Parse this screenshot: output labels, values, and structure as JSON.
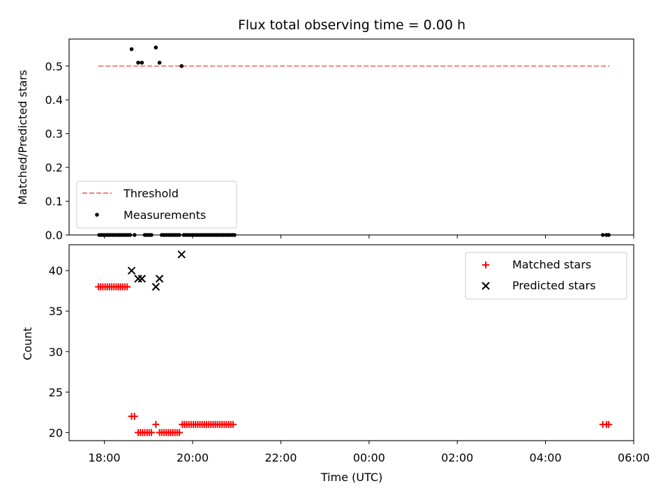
{
  "chart_data": [
    {
      "type": "scatter",
      "title": "Flux total observing time = 0.00 h",
      "xlabel": "",
      "ylabel": "Matched/Predicted stars",
      "xlim": [
        "17:12",
        "06:00"
      ],
      "ylim": [
        0,
        0.58
      ],
      "yticks": [
        0.0,
        0.1,
        0.2,
        0.3,
        0.4,
        0.5
      ],
      "ytick_labels": [
        "0.0",
        "0.1",
        "0.2",
        "0.3",
        "0.4",
        "0.5"
      ],
      "threshold": {
        "name": "Threshold",
        "value": 0.5,
        "x_start": "17:52",
        "x_end": "05:27",
        "color": "#f08080"
      },
      "legend_position": "lower-left",
      "series": [
        {
          "name": "Measurements",
          "color": "#000000",
          "points": [
            [
              "17:53",
              0
            ],
            [
              "17:56",
              0
            ],
            [
              "17:59",
              0
            ],
            [
              "18:02",
              0
            ],
            [
              "18:05",
              0
            ],
            [
              "18:08",
              0
            ],
            [
              "18:11",
              0
            ],
            [
              "18:14",
              0
            ],
            [
              "18:17",
              0
            ],
            [
              "18:20",
              0
            ],
            [
              "18:23",
              0
            ],
            [
              "18:26",
              0
            ],
            [
              "18:29",
              0
            ],
            [
              "18:32",
              0
            ],
            [
              "18:35",
              0
            ],
            [
              "18:37",
              0.55
            ],
            [
              "18:41",
              0
            ],
            [
              "18:46",
              0.51
            ],
            [
              "18:51",
              0.51
            ],
            [
              "18:55",
              0
            ],
            [
              "18:58",
              0
            ],
            [
              "19:01",
              0
            ],
            [
              "19:04",
              0
            ],
            [
              "19:10",
              0.555
            ],
            [
              "19:15",
              0.51
            ],
            [
              "19:18",
              0
            ],
            [
              "19:21",
              0
            ],
            [
              "19:24",
              0
            ],
            [
              "19:27",
              0
            ],
            [
              "19:30",
              0
            ],
            [
              "19:33",
              0
            ],
            [
              "19:36",
              0
            ],
            [
              "19:39",
              0
            ],
            [
              "19:42",
              0
            ],
            [
              "19:45",
              0.5
            ],
            [
              "19:48",
              0
            ],
            [
              "19:51",
              0
            ],
            [
              "19:54",
              0
            ],
            [
              "19:57",
              0
            ],
            [
              "20:00",
              0
            ],
            [
              "20:03",
              0
            ],
            [
              "20:06",
              0
            ],
            [
              "20:09",
              0
            ],
            [
              "20:12",
              0
            ],
            [
              "20:15",
              0
            ],
            [
              "20:18",
              0
            ],
            [
              "20:21",
              0
            ],
            [
              "20:24",
              0
            ],
            [
              "20:27",
              0
            ],
            [
              "20:30",
              0
            ],
            [
              "20:33",
              0
            ],
            [
              "20:36",
              0
            ],
            [
              "20:39",
              0
            ],
            [
              "20:42",
              0
            ],
            [
              "20:45",
              0
            ],
            [
              "20:48",
              0
            ],
            [
              "20:51",
              0
            ],
            [
              "20:54",
              0
            ],
            [
              "20:57",
              0
            ],
            [
              "05:18",
              0
            ],
            [
              "05:23",
              0
            ],
            [
              "05:26",
              0
            ]
          ]
        }
      ]
    },
    {
      "type": "scatter",
      "title": "",
      "xlabel": "Time (UTC)",
      "ylabel": "Count",
      "xlim": [
        "17:12",
        "06:00"
      ],
      "ylim": [
        19,
        43.2
      ],
      "yticks": [
        20,
        25,
        30,
        35,
        40
      ],
      "ytick_labels": [
        "20",
        "25",
        "30",
        "35",
        "40"
      ],
      "xticks": [
        "18:00",
        "20:00",
        "22:00",
        "00:00",
        "02:00",
        "04:00",
        "06:00"
      ],
      "xtick_labels": [
        "18:00",
        "20:00",
        "22:00",
        "00:00",
        "02:00",
        "04:00",
        "06:00"
      ],
      "legend_position": "upper-right",
      "series": [
        {
          "name": "Matched stars",
          "color": "#ff0000",
          "marker": "plus",
          "points": [
            [
              "17:52",
              38
            ],
            [
              "17:55",
              38
            ],
            [
              "17:58",
              38
            ],
            [
              "18:01",
              38
            ],
            [
              "18:04",
              38
            ],
            [
              "18:07",
              38
            ],
            [
              "18:10",
              38
            ],
            [
              "18:13",
              38
            ],
            [
              "18:16",
              38
            ],
            [
              "18:19",
              38
            ],
            [
              "18:22",
              38
            ],
            [
              "18:25",
              38
            ],
            [
              "18:28",
              38
            ],
            [
              "18:31",
              38
            ],
            [
              "18:37",
              22
            ],
            [
              "18:41",
              22
            ],
            [
              "18:46",
              20
            ],
            [
              "18:49",
              20
            ],
            [
              "18:52",
              20
            ],
            [
              "18:55",
              20
            ],
            [
              "18:58",
              20
            ],
            [
              "19:01",
              20
            ],
            [
              "19:04",
              20
            ],
            [
              "19:10",
              21
            ],
            [
              "19:15",
              20
            ],
            [
              "19:18",
              20
            ],
            [
              "19:21",
              20
            ],
            [
              "19:24",
              20
            ],
            [
              "19:27",
              20
            ],
            [
              "19:30",
              20
            ],
            [
              "19:33",
              20
            ],
            [
              "19:36",
              20
            ],
            [
              "19:39",
              20
            ],
            [
              "19:42",
              20
            ],
            [
              "19:46",
              21
            ],
            [
              "19:49",
              21
            ],
            [
              "19:52",
              21
            ],
            [
              "19:55",
              21
            ],
            [
              "19:58",
              21
            ],
            [
              "20:01",
              21
            ],
            [
              "20:04",
              21
            ],
            [
              "20:07",
              21
            ],
            [
              "20:10",
              21
            ],
            [
              "20:13",
              21
            ],
            [
              "20:16",
              21
            ],
            [
              "20:19",
              21
            ],
            [
              "20:22",
              21
            ],
            [
              "20:25",
              21
            ],
            [
              "20:28",
              21
            ],
            [
              "20:31",
              21
            ],
            [
              "20:34",
              21
            ],
            [
              "20:37",
              21
            ],
            [
              "20:40",
              21
            ],
            [
              "20:43",
              21
            ],
            [
              "20:46",
              21
            ],
            [
              "20:49",
              21
            ],
            [
              "20:52",
              21
            ],
            [
              "20:55",
              21
            ],
            [
              "05:18",
              21
            ],
            [
              "05:23",
              21
            ],
            [
              "05:26",
              21
            ]
          ]
        },
        {
          "name": "Predicted stars",
          "color": "#000000",
          "marker": "x",
          "points": [
            [
              "18:37",
              40
            ],
            [
              "18:46",
              39
            ],
            [
              "18:51",
              39
            ],
            [
              "19:10",
              38
            ],
            [
              "19:15",
              39
            ],
            [
              "19:45",
              42
            ]
          ]
        }
      ]
    }
  ]
}
